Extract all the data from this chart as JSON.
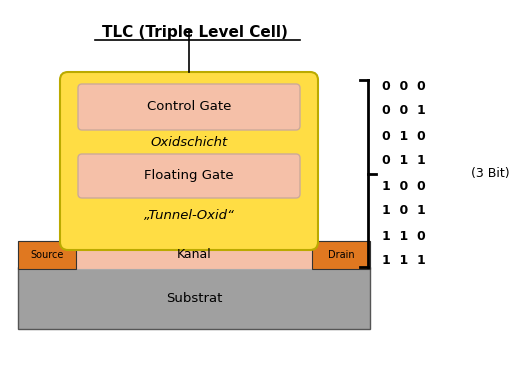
{
  "title": "TLC (Triple Level Cell)",
  "bg_color": "#ffffff",
  "substrat_color": "#a0a0a0",
  "yellow_body_color": "#ffdd44",
  "yellow_body_edge": "#bbaa00",
  "pink_box_color": "#f5c0a8",
  "pink_box_edge": "#ccaa99",
  "orange_color": "#e07820",
  "kanal_color": "#f5c0a8",
  "substrat_label": "Substrat",
  "kanal_label": "Kanal",
  "source_label": "Source",
  "drain_label": "Drain",
  "control_gate_label": "Control Gate",
  "oxidschicht_label": "Oxidschicht",
  "floating_gate_label": "Floating Gate",
  "tunnel_oxid_label": "„Tunnel-Oxid“",
  "bit_labels": [
    "0  0  0",
    "0  0  1",
    "0  1  0",
    "0  1  1",
    "1  0  0",
    "1  0  1",
    "1  1  0",
    "1  1  1"
  ],
  "bit_annotation": "(3 Bit)"
}
